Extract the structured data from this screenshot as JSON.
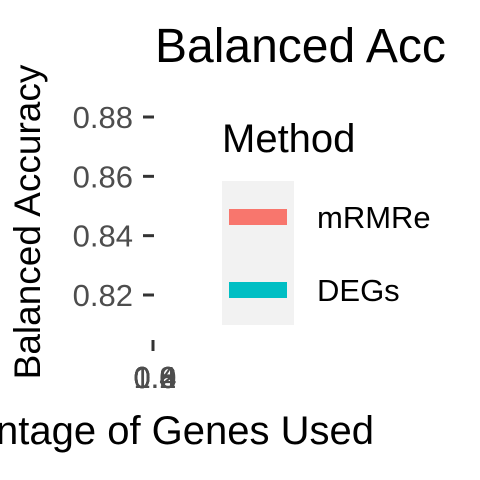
{
  "chart_data": {
    "type": "line",
    "title": "Balanced Acc",
    "xlabel": "ntage of Genes Used",
    "ylabel": "Balanced Accuracy",
    "yticks": [
      "0.88",
      "0.86",
      "0.84",
      "0.82"
    ],
    "xticks_overlapping": [
      "1.0",
      "0.8",
      "0.6",
      "0.4",
      "0.2"
    ],
    "ylim": [
      0.805,
      0.89
    ],
    "legend": {
      "title": "Method",
      "position": "right",
      "entries": [
        {
          "name": "mRMRe",
          "color": "#F8766D"
        },
        {
          "name": "DEGs",
          "color": "#00BFC4"
        }
      ]
    },
    "series": [
      {
        "name": "mRMRe",
        "values": []
      },
      {
        "name": "DEGs",
        "values": []
      }
    ]
  },
  "colors": {
    "text": "#000000",
    "tick_label": "#4D4D4D",
    "tick": "#333333",
    "legend_bg": "#F2F2F2"
  }
}
